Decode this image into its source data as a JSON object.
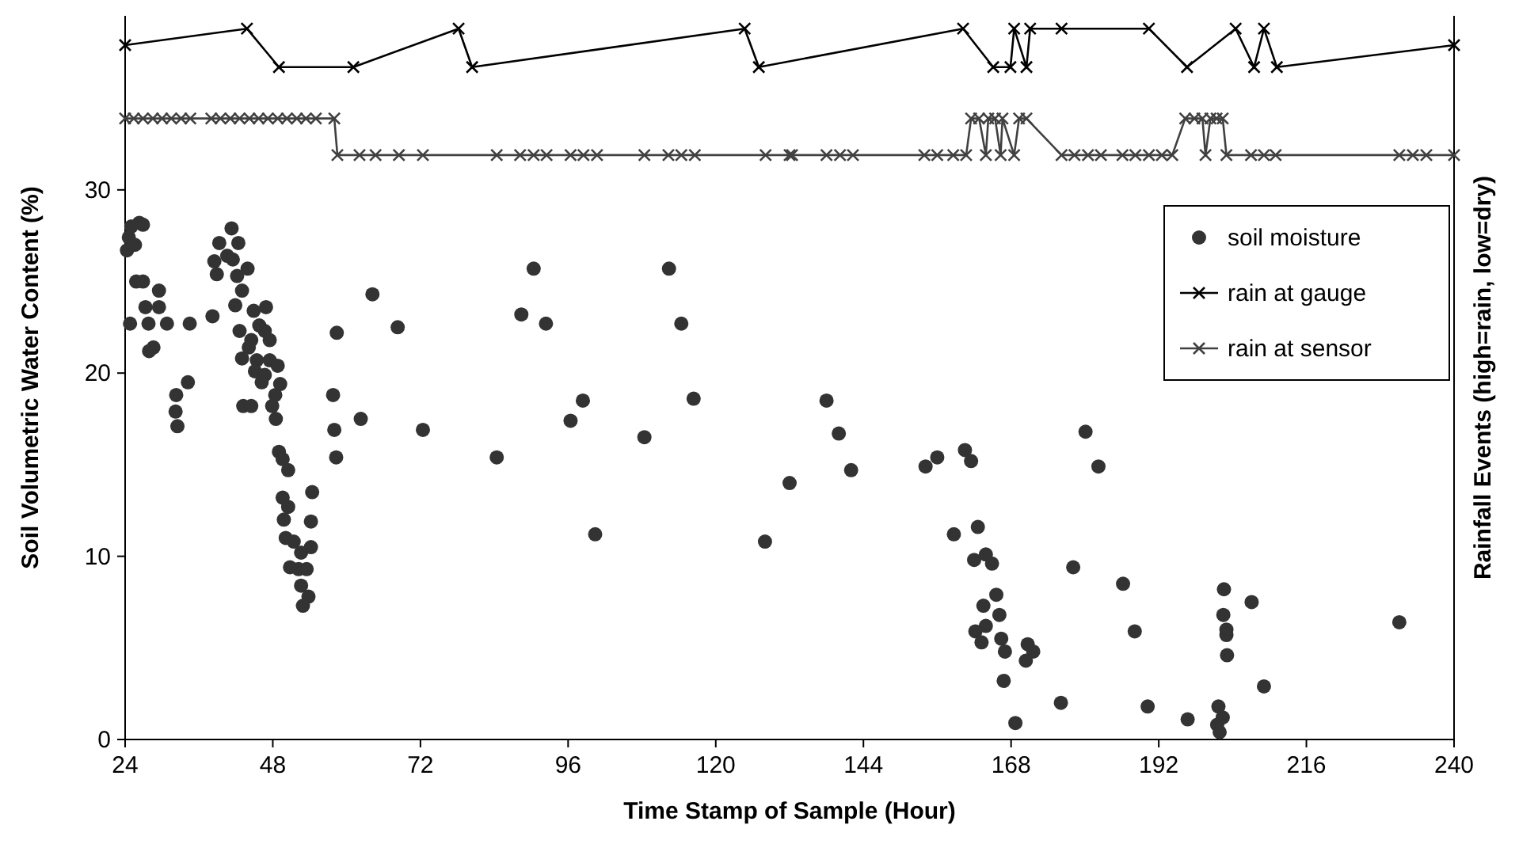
{
  "chart_data": {
    "type": "scatter",
    "xlabel": "Time Stamp of Sample (Hour)",
    "ylabel": "Soil Volumetric Water Content (%)",
    "y2label": "Rainfall Events (high=rain, low=dry)",
    "xlim": [
      24,
      240
    ],
    "xticks": [
      24,
      48,
      72,
      96,
      120,
      144,
      168,
      192,
      216,
      240
    ],
    "ylim": [
      0,
      39.5
    ],
    "yticks": [
      0,
      10,
      20,
      30
    ],
    "grid": false,
    "legend": "top right",
    "series": [
      {
        "name": "soil moisture",
        "marker": "circle",
        "color": "#333333",
        "x": [
          24.3,
          24.6,
          25.0,
          25.6,
          24.8,
          25.8,
          26.3,
          26.9,
          26.9,
          29.5,
          27.3,
          29.5,
          27.8,
          30.8,
          34.5,
          38.2,
          28.6,
          27.9,
          34.2,
          32.3,
          32.2,
          32.5,
          41.3,
          39.3,
          42.4,
          38.5,
          40.6,
          41.5,
          38.9,
          42.2,
          43.9,
          43.0,
          41.9,
          44.9,
          46.9,
          42.6,
          45.8,
          46.7,
          47.5,
          44.5,
          44.1,
          43.0,
          45.4,
          47.5,
          48.8,
          45.1,
          46.7,
          46.2,
          49.2,
          48.4,
          43.2,
          44.5,
          47.9,
          48.5,
          49.0,
          49.6,
          50.5,
          54.4,
          49.6,
          50.5,
          49.8,
          54.2,
          50.1,
          51.4,
          54.2,
          52.6,
          50.8,
          52.2,
          53.5,
          52.6,
          53.8,
          52.9,
          64.2,
          68.3,
          58.4,
          57.8,
          62.3,
          58.0,
          72.4,
          58.3,
          84.4,
          90.4,
          88.4,
          92.4,
          98.4,
          96.4,
          100.4,
          108.4,
          112.4,
          114.4,
          116.4,
          128.0,
          132.0,
          138.0,
          140.0,
          142.0,
          154.1,
          156.0,
          158.7,
          160.5,
          161.5,
          180.1,
          182.2,
          162.6,
          162.0,
          163.9,
          164.9,
          178.1,
          186.2,
          202.6,
          207.1,
          202.5,
          203.0,
          203.0,
          203.1,
          231.1,
          165.6,
          163.5,
          166.1,
          163.9,
          162.2,
          163.2,
          166.4,
          167.0,
          170.7,
          171.6,
          170.4,
          166.8,
          188.1,
          209.1,
          176.1,
          168.7,
          190.2,
          196.7,
          201.7,
          202.4,
          201.5,
          201.9
        ],
        "values": [
          26.7,
          27.4,
          28.0,
          27.0,
          22.7,
          25.0,
          28.2,
          28.1,
          25.0,
          24.5,
          23.6,
          23.6,
          22.7,
          22.7,
          22.7,
          23.1,
          21.4,
          21.2,
          19.5,
          18.8,
          17.9,
          17.1,
          27.9,
          27.1,
          27.1,
          26.1,
          26.4,
          26.2,
          25.4,
          25.3,
          25.7,
          24.5,
          23.7,
          23.4,
          23.6,
          22.3,
          22.6,
          22.3,
          21.8,
          21.8,
          21.4,
          20.8,
          20.7,
          20.7,
          20.4,
          20.1,
          19.9,
          19.5,
          19.4,
          18.8,
          18.2,
          18.2,
          18.2,
          17.5,
          15.7,
          15.3,
          14.7,
          13.5,
          13.2,
          12.7,
          12.0,
          11.9,
          11.0,
          10.8,
          10.5,
          10.2,
          9.4,
          9.3,
          9.3,
          8.4,
          7.8,
          7.3,
          24.3,
          22.5,
          22.2,
          18.8,
          17.5,
          16.9,
          16.9,
          15.4,
          15.4,
          25.7,
          23.2,
          22.7,
          18.5,
          17.4,
          11.2,
          16.5,
          25.7,
          22.7,
          18.6,
          10.8,
          14.0,
          18.5,
          16.7,
          14.7,
          14.9,
          15.4,
          11.2,
          15.8,
          15.2,
          16.8,
          14.9,
          11.6,
          9.8,
          10.1,
          9.6,
          9.4,
          8.5,
          8.2,
          7.5,
          6.8,
          6.0,
          5.7,
          4.6,
          6.4,
          7.9,
          7.3,
          6.8,
          6.2,
          5.9,
          5.3,
          5.5,
          4.8,
          5.2,
          4.8,
          4.3,
          3.2,
          5.9,
          2.9,
          2.0,
          0.9,
          1.8,
          1.1,
          1.8,
          1.2,
          0.8,
          0.4
        ]
      },
      {
        "name": "rain at gauge",
        "type": "line",
        "marker": "cross",
        "line_style": "solid",
        "color": "#000000",
        "x": [
          24,
          43.8,
          49.0,
          61.1,
          78.2,
          80.4,
          124.7,
          127.0,
          160.2,
          165.1,
          167.9,
          168.5,
          170.5,
          171.1,
          176.2,
          190.4,
          196.6,
          204.5,
          207.5,
          209.1,
          211.2,
          240
        ],
        "values": [
          37.9,
          38.8,
          36.7,
          36.7,
          38.8,
          36.7,
          38.8,
          36.7,
          38.8,
          36.7,
          36.7,
          38.8,
          36.7,
          38.8,
          38.8,
          38.8,
          36.7,
          38.8,
          36.7,
          38.8,
          36.7,
          37.9
        ]
      },
      {
        "name": "rain at sensor",
        "type": "line",
        "marker": "cross",
        "line_style": "solid",
        "color": "#404040",
        "x": [
          24,
          25.4,
          26.9,
          28.5,
          30.0,
          31.5,
          33.1,
          34.6,
          38.0,
          39.5,
          41.1,
          42.6,
          44.2,
          45.7,
          47.2,
          48.8,
          50.3,
          51.9,
          53.4,
          55.0,
          58.0,
          58.5,
          62.1,
          64.7,
          68.5,
          72.4,
          84.4,
          88.2,
          90.4,
          92.5,
          96.4,
          98.5,
          100.7,
          108.4,
          112.3,
          114.4,
          116.6,
          128.1,
          132.0,
          132.4,
          138.0,
          140.2,
          142.3,
          153.9,
          156.0,
          158.6,
          160.7,
          161.5,
          162.8,
          163.9,
          164.3,
          165.4,
          166.3,
          166.6,
          168.5,
          169.3,
          170.5,
          176.2,
          178.3,
          180.5,
          182.6,
          186.1,
          188.2,
          190.4,
          192.5,
          194.2,
          196.3,
          197.8,
          199.1,
          199.6,
          200.4,
          201.4,
          202.4,
          203.0,
          207.0,
          209.1,
          211.0,
          231.1,
          233.3,
          235.5,
          240
        ],
        "values": [
          33.9,
          33.9,
          33.9,
          33.9,
          33.9,
          33.9,
          33.9,
          33.9,
          33.9,
          33.9,
          33.9,
          33.9,
          33.9,
          33.9,
          33.9,
          33.9,
          33.9,
          33.9,
          33.9,
          33.9,
          33.9,
          31.9,
          31.9,
          31.9,
          31.9,
          31.9,
          31.9,
          31.9,
          31.9,
          31.9,
          31.9,
          31.9,
          31.9,
          31.9,
          31.9,
          31.9,
          31.9,
          31.9,
          31.9,
          31.9,
          31.9,
          31.9,
          31.9,
          31.9,
          31.9,
          31.9,
          31.9,
          33.9,
          33.9,
          31.9,
          33.9,
          33.9,
          31.9,
          33.9,
          31.9,
          33.9,
          33.9,
          31.9,
          31.9,
          31.9,
          31.9,
          31.9,
          31.9,
          31.9,
          31.9,
          31.9,
          33.9,
          33.9,
          33.9,
          31.9,
          33.9,
          33.9,
          33.9,
          31.9,
          31.9,
          31.9,
          31.9,
          31.9,
          31.9,
          31.9,
          31.9
        ]
      }
    ]
  }
}
